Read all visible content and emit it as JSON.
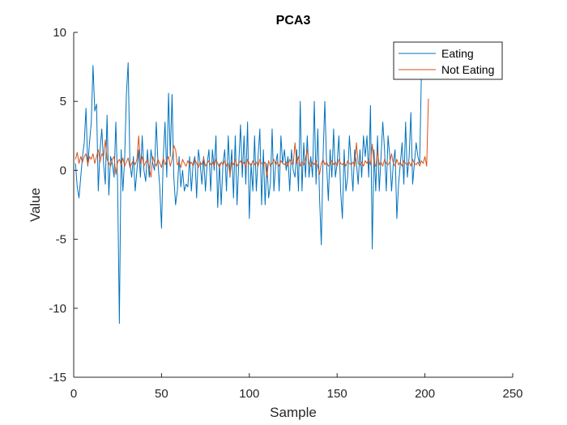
{
  "chart_data": {
    "type": "line",
    "title": "PCA3",
    "xlabel": "Sample",
    "ylabel": "Value",
    "xlim": [
      0,
      250
    ],
    "ylim": [
      -15,
      10
    ],
    "xticks": [
      0,
      50,
      100,
      150,
      200,
      250
    ],
    "yticks": [
      -15,
      -10,
      -5,
      0,
      5,
      10
    ],
    "grid": false,
    "legend_position": "top-right",
    "series": [
      {
        "name": "Eating",
        "color": "#0072BD",
        "x_start": 1,
        "x_step": 1,
        "values": [
          0.5,
          -1.2,
          -2.0,
          -0.5,
          1.0,
          2.0,
          4.5,
          0.3,
          2.0,
          3.5,
          7.6,
          4.3,
          4.8,
          -1.5,
          1.5,
          3.0,
          0.5,
          -1.0,
          4.0,
          -1.8,
          1.0,
          0.5,
          -0.5,
          3.5,
          -1.0,
          -11.1,
          1.5,
          -1.5,
          0.8,
          5.5,
          7.8,
          0.5,
          -0.5,
          1.0,
          -1.5,
          0.0,
          1.5,
          -0.5,
          2.5,
          0.0,
          -0.8,
          1.5,
          -0.5,
          1.5,
          0.5,
          0.0,
          3.5,
          0.5,
          -1.2,
          -4.2,
          1.0,
          3.5,
          -0.5,
          5.6,
          1.0,
          5.5,
          -0.5,
          -2.5,
          -1.5,
          1.0,
          -1.2,
          0.0,
          -1.5,
          -1.0,
          -1.2,
          1.0,
          -1.5,
          0.5,
          1.0,
          -2.0,
          1.5,
          0.5,
          -1.0,
          1.0,
          -1.5,
          0.5,
          1.5,
          -1.5,
          1.5,
          0.0,
          2.5,
          -2.7,
          0.5,
          -2.5,
          0.5,
          1.5,
          -1.5,
          2.5,
          -0.5,
          1.5,
          -2.0,
          2.5,
          -2.5,
          0.5,
          3.3,
          -0.5,
          2.5,
          -1.0,
          3.5,
          -3.5,
          0.5,
          -1.5,
          2.5,
          -1.5,
          1.0,
          3.0,
          -2.5,
          1.5,
          -2.5,
          0.5,
          -2.0,
          -1.0,
          3.0,
          -1.5,
          0.5,
          1.2,
          -1.5,
          2.5,
          0.5,
          1.5,
          0.0,
          1.0,
          -1.5,
          1.5,
          0.0,
          -0.5,
          1.5,
          -1.5,
          5.0,
          -1.5,
          2.0,
          -0.5,
          2.5,
          -0.5,
          1.0,
          -0.5,
          5.0,
          -1.0,
          3.0,
          -2.0,
          -5.4,
          1.0,
          5.0,
          0.5,
          -2.2,
          1.5,
          -0.5,
          3.0,
          -0.5,
          0.5,
          2.5,
          -1.5,
          -3.5,
          1.5,
          -1.5,
          -0.5,
          2.5,
          0.5,
          -1.5,
          1.5,
          0.5,
          -1.0,
          1.5,
          -0.5,
          2.5,
          1.0,
          2.5,
          -0.5,
          4.7,
          -5.7,
          1.5,
          -1.5,
          2.5,
          -1.5,
          1.0,
          3.5,
          1.5,
          -1.5,
          2.5,
          1.0,
          -1.5,
          0.5,
          1.5,
          -3.5,
          -1.0,
          0.5,
          2.0,
          -1.0,
          3.5,
          -0.5,
          1.0,
          4.2,
          -1.0,
          0.5,
          2.0,
          1.0,
          0.5,
          7.0
        ]
      },
      {
        "name": "Not Eating",
        "color": "#D95319",
        "x_start": 1,
        "x_step": 1,
        "values": [
          0.8,
          1.3,
          0.5,
          1.0,
          0.6,
          1.0,
          1.2,
          0.4,
          1.0,
          0.8,
          1.2,
          0.5,
          1.0,
          1.5,
          0.6,
          1.2,
          1.0,
          2.2,
          0.8,
          0.5,
          0.3,
          0.8,
          1.0,
          -0.3,
          0.6,
          0.8,
          0.4,
          0.9,
          0.3,
          0.6,
          0.9,
          0.2,
          0.5,
          0.7,
          0.4,
          0.8,
          2.5,
          0.5,
          1.0,
          0.3,
          0.6,
          0.8,
          0.2,
          -0.5,
          1.0,
          0.6,
          0.3,
          0.8,
          0.5,
          0.2,
          0.9,
          0.4,
          0.7,
          1.0,
          0.3,
          0.8,
          1.8,
          1.5,
          0.4,
          0.6,
          0.2,
          0.8,
          0.5,
          0.3,
          0.7,
          0.4,
          0.6,
          0.3,
          0.8,
          0.5,
          0.2,
          0.6,
          0.4,
          0.9,
          0.3,
          0.5,
          0.7,
          0.4,
          0.6,
          0.3,
          0.8,
          0.5,
          0.2,
          0.6,
          0.4,
          0.7,
          0.3,
          0.5,
          -0.3,
          0.6,
          0.4,
          0.8,
          0.3,
          0.5,
          0.7,
          0.4,
          0.6,
          0.2,
          0.8,
          0.5,
          0.3,
          0.7,
          0.4,
          0.6,
          0.3,
          0.8,
          0.5,
          0.4,
          0.6,
          -0.5,
          0.7,
          0.3,
          0.5,
          0.8,
          0.4,
          0.6,
          0.3,
          0.7,
          0.5,
          0.4,
          0.6,
          0.3,
          0.8,
          0.5,
          0.4,
          2.0,
          0.5,
          1.0,
          0.3,
          0.6,
          0.4,
          0.8,
          1.5,
          0.5,
          0.3,
          0.6,
          0.4,
          0.7,
          0.3,
          -0.3,
          0.5,
          0.8,
          0.4,
          0.6,
          0.3,
          0.5,
          0.7,
          0.4,
          0.6,
          0.3,
          0.8,
          0.5,
          0.4,
          0.6,
          0.3,
          0.7,
          0.5,
          0.4,
          0.6,
          0.3,
          2.0,
          0.5,
          0.4,
          0.6,
          0.3,
          0.7,
          0.5,
          0.8,
          0.4,
          1.9,
          0.5,
          0.3,
          1.4,
          0.4,
          0.6,
          0.3,
          0.8,
          0.5,
          0.4,
          0.6,
          1.2,
          0.5,
          0.3,
          0.8,
          0.4,
          0.6,
          0.3,
          0.7,
          0.5,
          0.4,
          0.6,
          0.3,
          0.8,
          0.5,
          0.4,
          0.6,
          0.3,
          0.7,
          0.5,
          1.0,
          0.3,
          5.2
        ]
      }
    ]
  }
}
